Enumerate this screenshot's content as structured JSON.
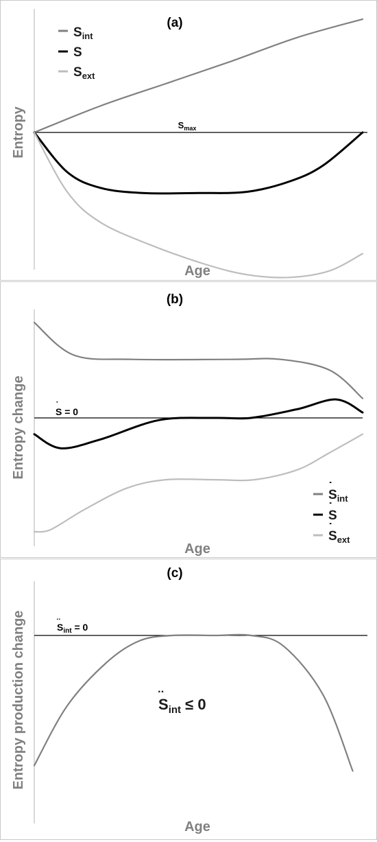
{
  "panels": [
    {
      "id": "a",
      "title": "(a)",
      "ylabel": "Entropy",
      "xlabel": "Age",
      "ref_label": {
        "base": "S",
        "sub": "max"
      },
      "legend": [
        {
          "base": "S",
          "sub": "int",
          "dot": "",
          "color": "#808080"
        },
        {
          "base": "S",
          "sub": "",
          "dot": "",
          "color": "#000000"
        },
        {
          "base": "S",
          "sub": "ext",
          "dot": "",
          "color": "#bdbdbd"
        }
      ]
    },
    {
      "id": "b",
      "title": "(b)",
      "ylabel": "Entropy change",
      "xlabel": "Age",
      "ref_label": {
        "base": "S",
        "dot": "˙",
        "tail": " = 0"
      },
      "legend": [
        {
          "base": "S",
          "sub": "int",
          "dot": "˙",
          "color": "#808080"
        },
        {
          "base": "S",
          "sub": "",
          "dot": "˙",
          "color": "#000000"
        },
        {
          "base": "S",
          "sub": "ext",
          "dot": "˙",
          "color": "#bdbdbd"
        }
      ]
    },
    {
      "id": "c",
      "title": "(c)",
      "ylabel": "Entropy production change",
      "xlabel": "Age",
      "ref_label": {
        "base": "S",
        "dot": "¨",
        "sub": "int",
        "tail": " = 0"
      },
      "annotation": {
        "base": "S",
        "dot": "¨",
        "sub": "int",
        "tail": " ≤ 0"
      }
    }
  ],
  "chart_data": [
    {
      "type": "line",
      "panel": "a",
      "xlim": [
        0,
        100
      ],
      "ylim": [
        -100,
        100
      ],
      "reference_y": 0,
      "series": [
        {
          "name": "S_int",
          "color": "#808080",
          "x": [
            0,
            20,
            40,
            60,
            80,
            100
          ],
          "y": [
            0,
            20,
            37,
            54,
            72,
            86
          ]
        },
        {
          "name": "S",
          "color": "#000000",
          "x": [
            0,
            10,
            20,
            33,
            50,
            65,
            78,
            88,
            100
          ],
          "y": [
            0,
            -30,
            -42,
            -46,
            -46,
            -45,
            -37,
            -25,
            0
          ]
        },
        {
          "name": "S_ext",
          "color": "#bdbdbd",
          "x": [
            0,
            10,
            20,
            35,
            52,
            65,
            78,
            90,
            100
          ],
          "y": [
            0,
            -45,
            -68,
            -85,
            -100,
            -108,
            -110,
            -105,
            -92
          ]
        }
      ]
    },
    {
      "type": "line",
      "panel": "b",
      "xlim": [
        0,
        100
      ],
      "ylim": [
        -100,
        100
      ],
      "reference_y": 0,
      "series": [
        {
          "name": "Ṡ_int",
          "color": "#808080",
          "x": [
            0,
            12,
            30,
            60,
            75,
            90,
            100
          ],
          "y": [
            88,
            58,
            54,
            54,
            54,
            44,
            18
          ]
        },
        {
          "name": "Ṡ",
          "color": "#000000",
          "x": [
            0,
            8,
            20,
            38,
            55,
            66,
            80,
            92,
            100
          ],
          "y": [
            -15,
            -28,
            -20,
            -2,
            0,
            0,
            8,
            17,
            5
          ]
        },
        {
          "name": "Ṡ_ext",
          "color": "#bdbdbd",
          "x": [
            0,
            5,
            15,
            28,
            40,
            55,
            67,
            80,
            90,
            100
          ],
          "y": [
            -105,
            -103,
            -85,
            -65,
            -57,
            -57,
            -57,
            -48,
            -32,
            -15
          ]
        }
      ]
    },
    {
      "type": "line",
      "panel": "c",
      "xlim": [
        0,
        100
      ],
      "ylim": [
        -100,
        100
      ],
      "reference_y": 0,
      "series": [
        {
          "name": "S̈_int",
          "color": "#808080",
          "x": [
            0,
            10,
            22,
            32,
            42,
            55,
            66,
            76,
            88,
            97
          ],
          "y": [
            -120,
            -65,
            -25,
            -5,
            0,
            0,
            0,
            -10,
            -55,
            -125
          ]
        }
      ]
    }
  ]
}
